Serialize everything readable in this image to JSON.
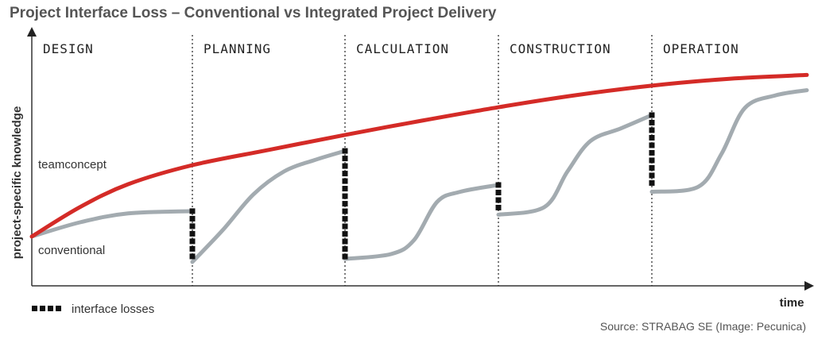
{
  "chart_data": {
    "type": "line",
    "title": "Project Interface Loss – Conventional vs Integrated Project Delivery",
    "xlabel": "time",
    "ylabel": "project-specific knowledge",
    "xlim": [
      0,
      5
    ],
    "ylim": [
      0,
      100
    ],
    "phases": [
      "DESIGN",
      "PLANNING",
      "CALCULATION",
      "CONSTRUCTION",
      "OPERATION"
    ],
    "series": [
      {
        "name": "teamconcept",
        "color": "#d42b27",
        "points": [
          [
            0,
            19.4
          ],
          [
            0.3,
            31
          ],
          [
            0.6,
            40
          ],
          [
            1,
            47.5
          ],
          [
            1.5,
            53.5
          ],
          [
            2,
            59.4
          ],
          [
            2.5,
            65
          ],
          [
            3,
            70.3
          ],
          [
            3.5,
            75
          ],
          [
            4,
            78.8
          ],
          [
            4.5,
            81.5
          ],
          [
            5,
            83
          ]
        ]
      },
      {
        "name": "conventional",
        "color": "#a3abb0",
        "segments": [
          [
            [
              0,
              19.4
            ],
            [
              0.3,
              25
            ],
            [
              0.6,
              28.5
            ],
            [
              1,
              29.4
            ]
          ],
          [
            [
              1,
              9.4
            ],
            [
              1.2,
              22
            ],
            [
              1.4,
              36
            ],
            [
              1.6,
              45
            ],
            [
              1.8,
              49.5
            ],
            [
              2,
              53.1
            ]
          ],
          [
            [
              2,
              10.6
            ],
            [
              2.3,
              12.5
            ],
            [
              2.45,
              18
            ],
            [
              2.6,
              33
            ],
            [
              2.75,
              37
            ],
            [
              3,
              39.7
            ]
          ],
          [
            [
              3,
              28
            ],
            [
              3.3,
              31
            ],
            [
              3.45,
              45
            ],
            [
              3.6,
              57
            ],
            [
              3.8,
              62
            ],
            [
              4,
              67.2
            ]
          ],
          [
            [
              4,
              37
            ],
            [
              4.3,
              39
            ],
            [
              4.45,
              52
            ],
            [
              4.6,
              70
            ],
            [
              4.8,
              75
            ],
            [
              5,
              77
            ]
          ]
        ]
      }
    ],
    "interface_losses": [
      {
        "t": 1,
        "from": 29.4,
        "to": 9.4
      },
      {
        "t": 2,
        "from": 53.1,
        "to": 10.6
      },
      {
        "t": 3,
        "from": 39.7,
        "to": 28
      },
      {
        "t": 4,
        "from": 67.2,
        "to": 37
      }
    ],
    "legend": {
      "label": "interface losses",
      "placement": "bottom-left"
    },
    "source": "Source: STRABAG SE (Image: Pecunica)"
  }
}
